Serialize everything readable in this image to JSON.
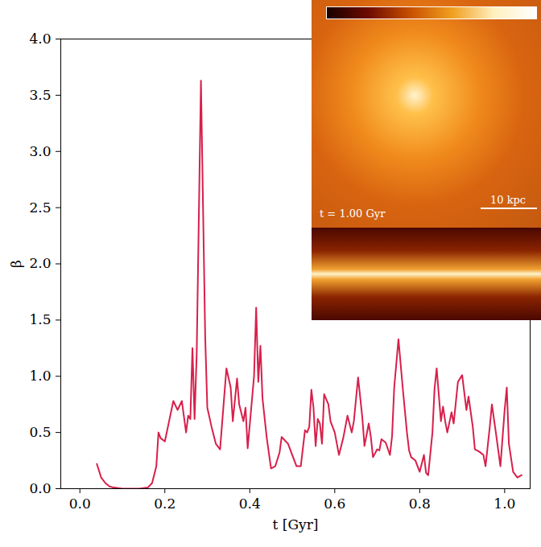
{
  "chart_data": {
    "type": "line",
    "x_label": "t [Gyr]",
    "y_label": "β",
    "color": "#d7204b",
    "xlim": [
      -0.045,
      1.06
    ],
    "ylim": [
      0,
      4.0
    ],
    "xticks": [
      {
        "value": 0,
        "label": "0.0"
      },
      {
        "value": 0.2,
        "label": "0.2"
      },
      {
        "value": 0.4,
        "label": "0.4"
      },
      {
        "value": 0.6,
        "label": "0.6"
      },
      {
        "value": 0.8,
        "label": "0.8"
      },
      {
        "value": 1.0,
        "label": "1.0"
      }
    ],
    "yticks": [
      {
        "value": 0,
        "label": "0.0"
      },
      {
        "value": 0.5,
        "label": "0.5"
      },
      {
        "value": 1.0,
        "label": "1.0"
      },
      {
        "value": 1.5,
        "label": "1.5"
      },
      {
        "value": 2.0,
        "label": "2.0"
      },
      {
        "value": 2.5,
        "label": "2.5"
      },
      {
        "value": 3.0,
        "label": "3.0"
      },
      {
        "value": 3.5,
        "label": "3.5"
      },
      {
        "value": 4.0,
        "label": "4.0"
      }
    ],
    "x": [
      0.04,
      0.05,
      0.06,
      0.07,
      0.08,
      0.1,
      0.12,
      0.14,
      0.16,
      0.17,
      0.18,
      0.185,
      0.19,
      0.2,
      0.21,
      0.22,
      0.23,
      0.24,
      0.25,
      0.255,
      0.26,
      0.265,
      0.27,
      0.275,
      0.285,
      0.295,
      0.3,
      0.31,
      0.32,
      0.33,
      0.345,
      0.355,
      0.36,
      0.37,
      0.375,
      0.385,
      0.39,
      0.395,
      0.41,
      0.415,
      0.42,
      0.425,
      0.43,
      0.44,
      0.45,
      0.46,
      0.47,
      0.475,
      0.49,
      0.5,
      0.51,
      0.52,
      0.53,
      0.535,
      0.54,
      0.545,
      0.55,
      0.555,
      0.56,
      0.565,
      0.57,
      0.575,
      0.585,
      0.59,
      0.6,
      0.61,
      0.62,
      0.63,
      0.64,
      0.645,
      0.655,
      0.665,
      0.67,
      0.68,
      0.685,
      0.69,
      0.7,
      0.705,
      0.71,
      0.72,
      0.73,
      0.735,
      0.74,
      0.75,
      0.76,
      0.77,
      0.775,
      0.78,
      0.79,
      0.8,
      0.81,
      0.815,
      0.82,
      0.83,
      0.835,
      0.84,
      0.85,
      0.855,
      0.86,
      0.865,
      0.875,
      0.88,
      0.89,
      0.9,
      0.91,
      0.915,
      0.925,
      0.93,
      0.94,
      0.95,
      0.955,
      0.965,
      0.97,
      0.98,
      0.99,
      1.0,
      1.005,
      1.01,
      1.02,
      1.03,
      1.04
    ],
    "values": [
      0.22,
      0.1,
      0.05,
      0.02,
      0.01,
      0.0,
      0.0,
      0.0,
      0.01,
      0.05,
      0.2,
      0.5,
      0.45,
      0.42,
      0.6,
      0.78,
      0.7,
      0.78,
      0.5,
      0.65,
      0.62,
      1.25,
      0.62,
      1.2,
      3.63,
      1.35,
      0.72,
      0.55,
      0.4,
      0.35,
      1.07,
      0.9,
      0.6,
      0.98,
      0.75,
      0.6,
      0.72,
      0.36,
      1.0,
      1.61,
      0.95,
      1.27,
      0.8,
      0.45,
      0.18,
      0.2,
      0.32,
      0.46,
      0.4,
      0.3,
      0.2,
      0.2,
      0.52,
      0.5,
      0.55,
      0.88,
      0.72,
      0.38,
      0.62,
      0.58,
      0.4,
      0.84,
      0.75,
      0.6,
      0.5,
      0.3,
      0.45,
      0.65,
      0.5,
      0.6,
      0.99,
      0.63,
      0.38,
      0.58,
      0.46,
      0.28,
      0.35,
      0.34,
      0.44,
      0.41,
      0.3,
      0.47,
      0.9,
      1.33,
      0.9,
      0.5,
      0.34,
      0.28,
      0.25,
      0.15,
      0.3,
      0.14,
      0.12,
      0.5,
      0.89,
      1.07,
      0.6,
      0.73,
      0.6,
      0.5,
      0.68,
      0.58,
      0.95,
      1.01,
      0.7,
      0.82,
      0.55,
      0.35,
      0.33,
      0.3,
      0.2,
      0.55,
      0.75,
      0.48,
      0.2,
      0.7,
      0.9,
      0.4,
      0.15,
      0.1,
      0.12
    ],
    "annotations": [
      "t = 1.00 Gyr",
      "10 kpc"
    ]
  }
}
